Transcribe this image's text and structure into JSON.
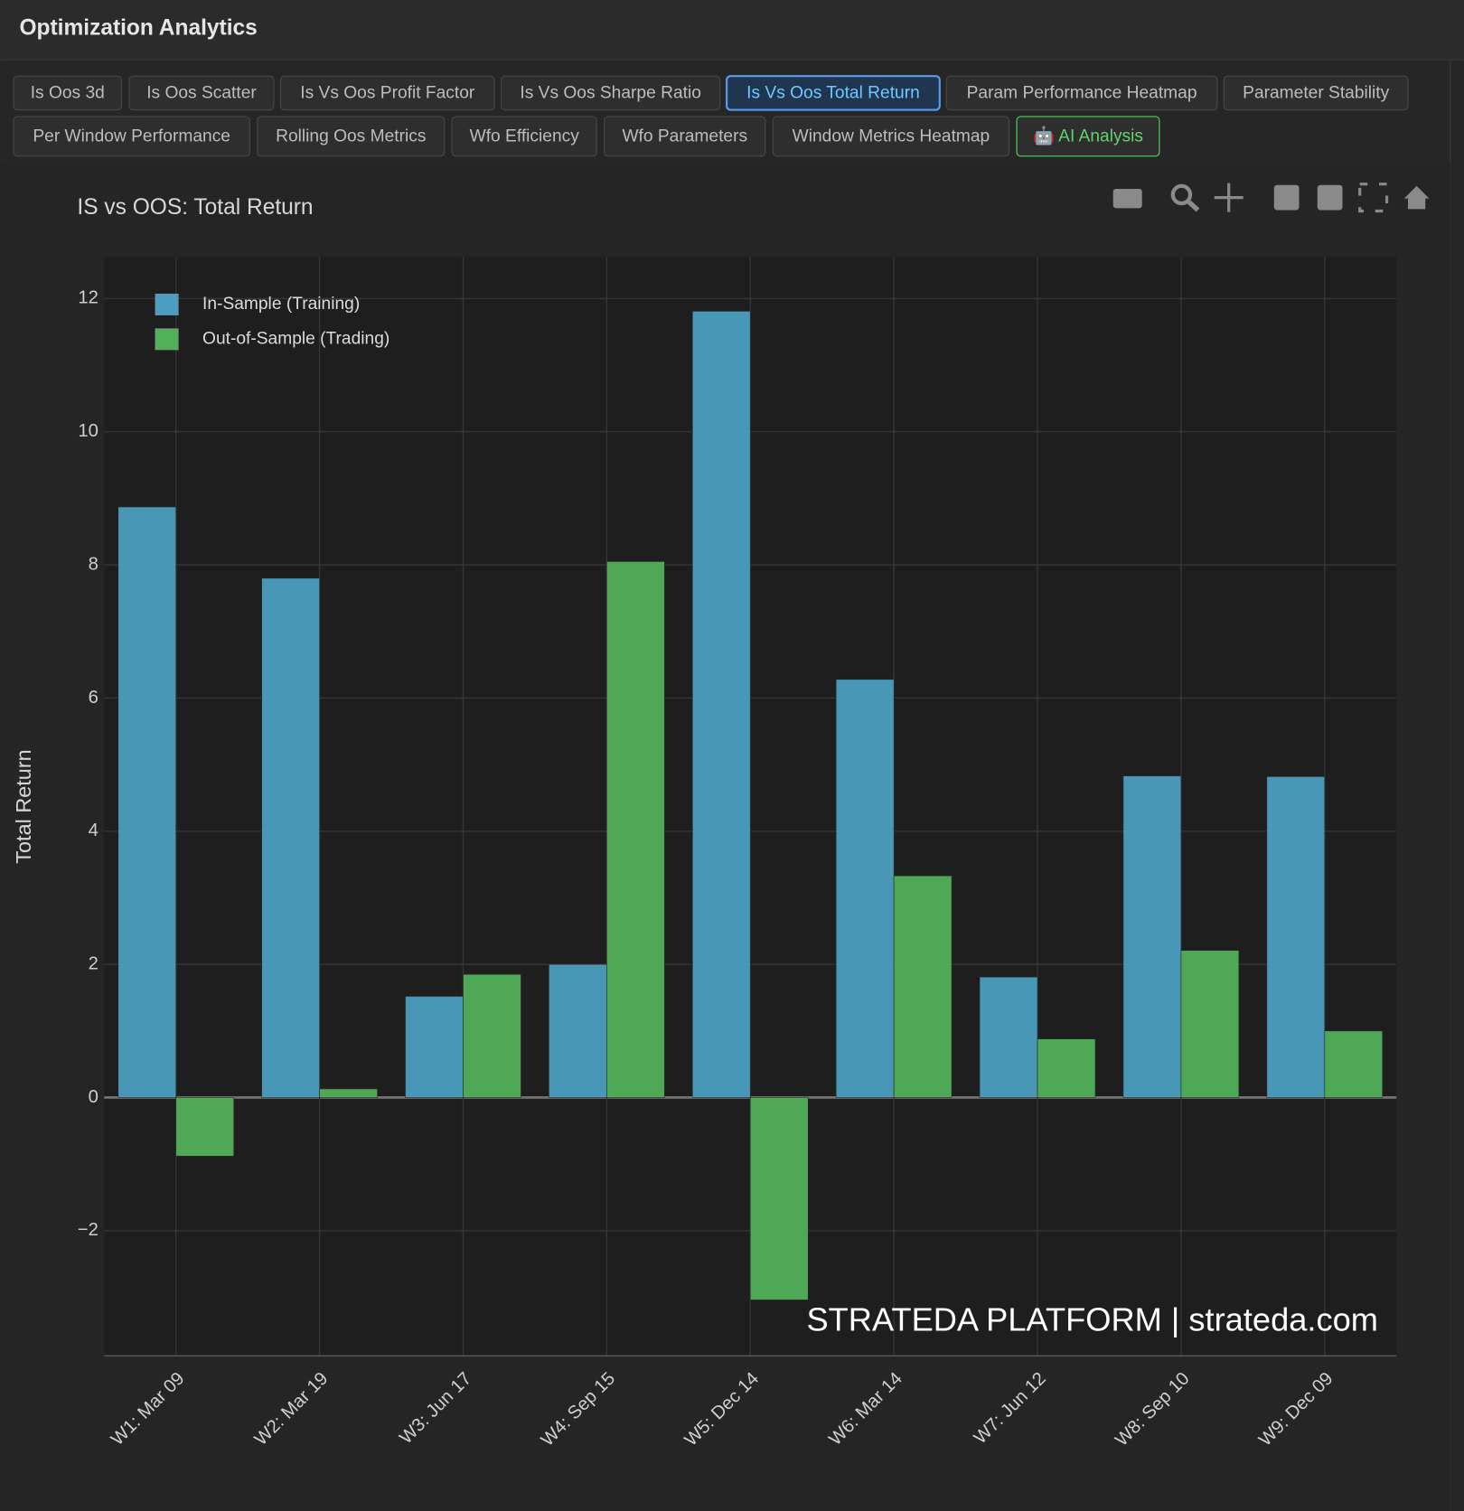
{
  "header": {
    "title": "Optimization Analytics"
  },
  "tabs": [
    "Is Oos 3d",
    "Is Oos Scatter",
    "Is Vs Oos Profit Factor",
    "Is Vs Oos Sharpe Ratio",
    "Is Vs Oos Total Return",
    "Param Performance Heatmap",
    "Parameter Stability",
    "Per Window Performance",
    "Rolling Oos Metrics",
    "Wfo Efficiency",
    "Wfo Parameters",
    "Window Metrics Heatmap",
    "🤖 AI Analysis"
  ],
  "chart_data": {
    "type": "bar",
    "title": "IS vs OOS: Total Return",
    "y_label": "Total Return",
    "watermark": "STRATEDA PLATFORM | strateda.com",
    "categories": [
      "W1: Mar 09",
      "W2: Mar 19",
      "W3: Jun 17",
      "W4: Sep 15",
      "W5: Dec 14",
      "W6: Mar 14",
      "W7: Jun 12",
      "W8: Sep 10",
      "W9: Dec 09"
    ],
    "series": [
      {
        "name": "In-Sample (Training)",
        "color": "#4b9ec0",
        "values": [
          8.87,
          7.8,
          1.52,
          2.0,
          11.81,
          6.28,
          1.81,
          4.83,
          4.82
        ]
      },
      {
        "name": "Out-of-Sample (Trading)",
        "color": "#52b05a",
        "values": [
          -0.88,
          0.13,
          1.85,
          8.05,
          -3.04,
          3.33,
          0.88,
          2.21,
          1.0
        ]
      }
    ],
    "ylim": [
      -3.88,
      12.62
    ],
    "yticks": [
      {
        "value": -2,
        "label": "−2"
      },
      0,
      2,
      4,
      6,
      8,
      10,
      12
    ],
    "grid": true,
    "legend": "top-left"
  }
}
